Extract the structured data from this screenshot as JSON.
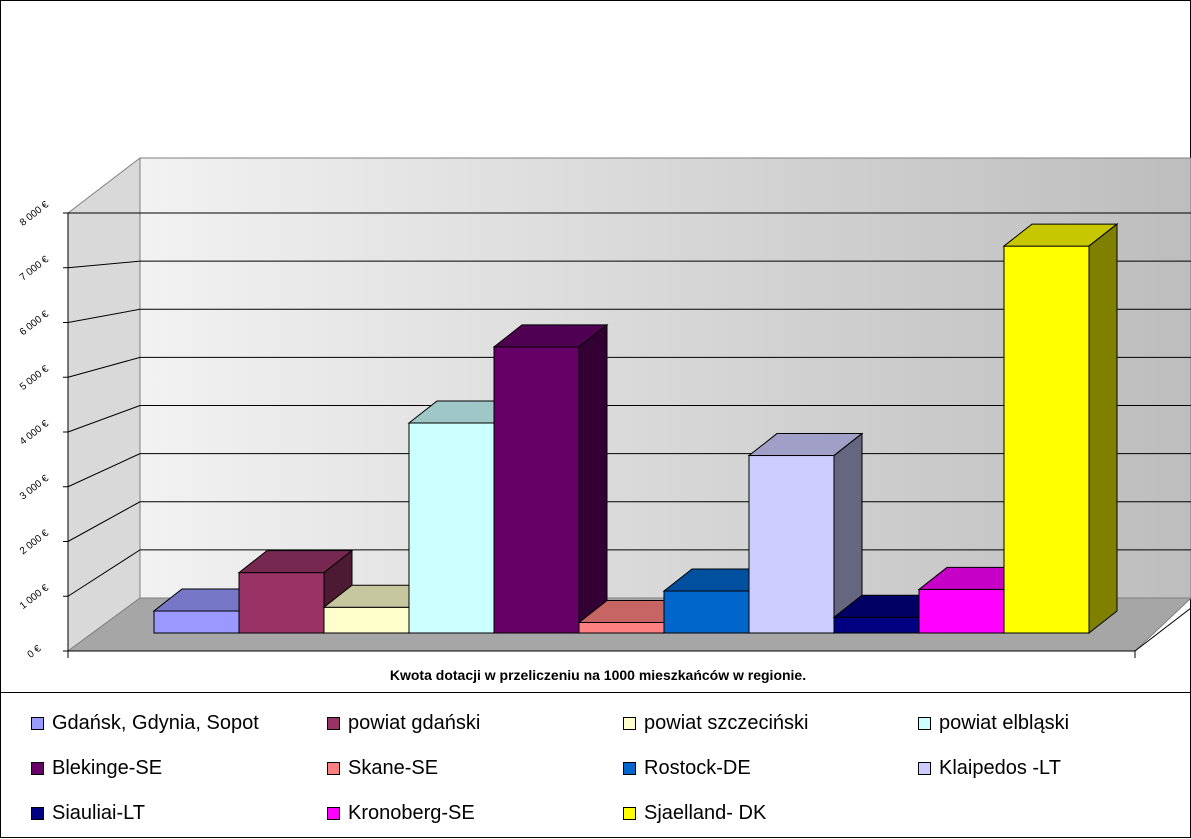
{
  "chart_data": {
    "type": "bar",
    "xlabel": "Kwota dotacji w przeliczeniu na 1000 mieszkańców w regionie.",
    "ylabel": "",
    "ylim": [
      0,
      8000
    ],
    "yticks": [
      0,
      1000,
      2000,
      3000,
      4000,
      5000,
      6000,
      7000,
      8000
    ],
    "ytick_labels": [
      "0 €",
      "1 000 €",
      "2 000 €",
      "3 000 €",
      "4 000 €",
      "5 000 €",
      "6 000 €",
      "7 000 €",
      "8 000 €"
    ],
    "grid": true,
    "legend_position": "bottom",
    "series": [
      {
        "name": "Gdańsk, Gdynia, Sopot",
        "value": 420,
        "color": "#9999FF"
      },
      {
        "name": "powiat gdański",
        "value": 1150,
        "color": "#993366"
      },
      {
        "name": "powiat szczeciński",
        "value": 490,
        "color": "#FFFFCC"
      },
      {
        "name": "powiat elbląski",
        "value": 4000,
        "color": "#CCFFFF"
      },
      {
        "name": "Blekinge-SE",
        "value": 5450,
        "color": "#660066"
      },
      {
        "name": "Skane-SE",
        "value": 200,
        "color": "#FF8080"
      },
      {
        "name": "Rostock-DE",
        "value": 800,
        "color": "#0066CC"
      },
      {
        "name": "Klaipedos -LT",
        "value": 3380,
        "color": "#CCCCFF"
      },
      {
        "name": "Siauliai-LT",
        "value": 300,
        "color": "#000080"
      },
      {
        "name": "Kronoberg-SE",
        "value": 830,
        "color": "#FF00FF"
      },
      {
        "name": "Sjaelland- DK",
        "value": 7370,
        "color": "#FFFF00"
      }
    ]
  }
}
